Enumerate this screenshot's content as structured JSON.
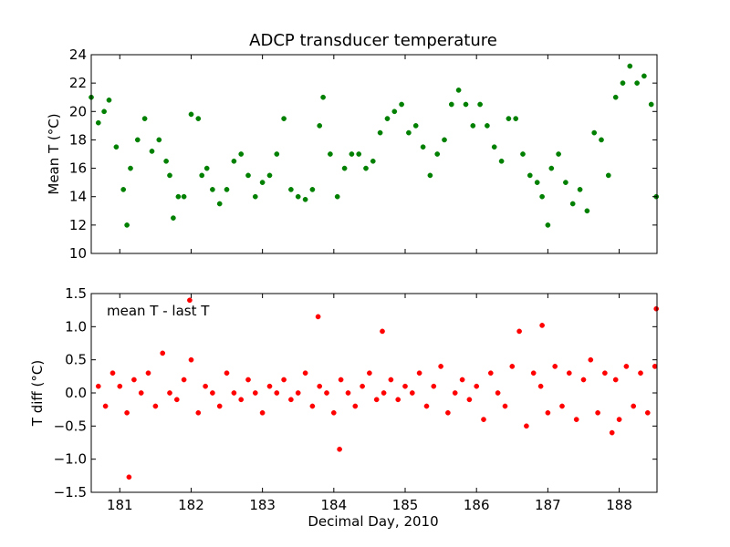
{
  "chart_data": [
    {
      "type": "scatter",
      "title": "ADCP transducer temperature",
      "xlabel": "",
      "ylabel": "Mean T (°C)",
      "xlim": [
        180.6,
        188.53
      ],
      "ylim": [
        10,
        24
      ],
      "xticks": [
        181,
        182,
        183,
        184,
        185,
        186,
        187,
        188
      ],
      "xtick_labels_visible": false,
      "yticks": [
        10,
        12,
        14,
        16,
        18,
        20,
        22,
        24
      ],
      "grid": false,
      "color": "#008000",
      "series": [
        {
          "x": [
            180.6,
            180.7,
            180.78,
            180.85,
            180.95,
            181.05,
            181.1,
            181.15,
            181.25,
            181.35,
            181.45,
            181.55,
            181.65,
            181.7,
            181.75,
            181.82,
            181.9,
            182.0,
            182.1,
            182.15,
            182.22,
            182.3,
            182.4,
            182.5,
            182.6,
            182.7,
            182.8,
            182.9,
            183.0,
            183.1,
            183.2,
            183.3,
            183.4,
            183.5,
            183.6,
            183.7,
            183.8,
            183.85,
            183.95,
            184.05,
            184.15,
            184.25,
            184.35,
            184.45,
            184.55,
            184.65,
            184.75,
            184.85,
            184.95,
            185.05,
            185.15,
            185.25,
            185.35,
            185.45,
            185.55,
            185.65,
            185.75,
            185.85,
            185.95,
            186.05,
            186.15,
            186.25,
            186.35,
            186.45,
            186.55,
            186.65,
            186.75,
            186.85,
            186.92,
            187.0,
            187.05,
            187.15,
            187.25,
            187.35,
            187.45,
            187.55,
            187.65,
            187.75,
            187.85,
            187.95,
            188.05,
            188.15,
            188.25,
            188.35,
            188.45,
            188.52
          ],
          "y": [
            21.0,
            19.2,
            20.0,
            20.8,
            17.5,
            14.5,
            12.0,
            16.0,
            18.0,
            19.5,
            17.2,
            18.0,
            16.5,
            15.5,
            12.5,
            14.0,
            14.0,
            19.8,
            19.5,
            15.5,
            16.0,
            14.5,
            13.5,
            14.5,
            16.5,
            17.0,
            15.5,
            14.0,
            15.0,
            15.5,
            17.0,
            19.5,
            14.5,
            14.0,
            13.8,
            14.5,
            19.0,
            21.0,
            17.0,
            14.0,
            16.0,
            17.0,
            17.0,
            16.0,
            16.5,
            18.5,
            19.5,
            20.0,
            20.5,
            18.5,
            19.0,
            17.5,
            15.5,
            17.0,
            18.0,
            20.5,
            21.5,
            20.5,
            19.0,
            20.5,
            19.0,
            17.5,
            16.5,
            19.5,
            19.5,
            17.0,
            15.5,
            15.0,
            14.0,
            12.0,
            16.0,
            17.0,
            15.0,
            13.5,
            14.5,
            13.0,
            18.5,
            18.0,
            15.5,
            21.0,
            22.0,
            23.2,
            22.0,
            22.5,
            20.5,
            14.0
          ]
        }
      ]
    },
    {
      "type": "scatter",
      "title": "",
      "xlabel": "Decimal Day, 2010",
      "ylabel": "T diff (°C)",
      "xlim": [
        180.6,
        188.53
      ],
      "ylim": [
        -1.5,
        1.5
      ],
      "xticks": [
        181,
        182,
        183,
        184,
        185,
        186,
        187,
        188
      ],
      "yticks": [
        -1.5,
        -1.0,
        -0.5,
        0.0,
        0.5,
        1.0,
        1.5
      ],
      "annotation": "mean T - last T",
      "grid": false,
      "color": "#ff0000",
      "series": [
        {
          "x": [
            180.7,
            180.8,
            180.9,
            181.0,
            181.1,
            181.13,
            181.2,
            181.3,
            181.4,
            181.5,
            181.6,
            181.7,
            181.8,
            181.9,
            181.98,
            182.0,
            182.1,
            182.2,
            182.3,
            182.4,
            182.5,
            182.6,
            182.7,
            182.8,
            182.9,
            183.0,
            183.1,
            183.2,
            183.3,
            183.4,
            183.5,
            183.6,
            183.7,
            183.78,
            183.8,
            183.9,
            184.0,
            184.08,
            184.1,
            184.2,
            184.3,
            184.4,
            184.5,
            184.6,
            184.68,
            184.7,
            184.8,
            184.9,
            185.0,
            185.1,
            185.2,
            185.3,
            185.4,
            185.5,
            185.6,
            185.7,
            185.8,
            185.9,
            186.0,
            186.1,
            186.2,
            186.3,
            186.4,
            186.5,
            186.6,
            186.7,
            186.8,
            186.9,
            186.92,
            187.0,
            187.1,
            187.2,
            187.3,
            187.4,
            187.5,
            187.6,
            187.7,
            187.8,
            187.9,
            187.95,
            188.0,
            188.1,
            188.2,
            188.3,
            188.4,
            188.5,
            188.52
          ],
          "y": [
            0.1,
            -0.2,
            0.3,
            0.1,
            -0.3,
            -1.27,
            0.2,
            0.0,
            0.3,
            -0.2,
            0.6,
            0.0,
            -0.1,
            0.2,
            1.4,
            0.5,
            -0.3,
            0.1,
            0.0,
            -0.2,
            0.3,
            0.0,
            -0.1,
            0.2,
            0.0,
            -0.3,
            0.1,
            0.0,
            0.2,
            -0.1,
            0.0,
            0.3,
            -0.2,
            1.15,
            0.1,
            0.0,
            -0.3,
            -0.85,
            0.2,
            0.0,
            -0.2,
            0.1,
            0.3,
            -0.1,
            0.93,
            0.0,
            0.2,
            -0.1,
            0.1,
            0.0,
            0.3,
            -0.2,
            0.1,
            0.4,
            -0.3,
            0.0,
            0.2,
            -0.1,
            0.1,
            -0.4,
            0.3,
            0.0,
            -0.2,
            0.4,
            0.93,
            -0.5,
            0.3,
            0.1,
            1.02,
            -0.3,
            0.4,
            -0.2,
            0.3,
            -0.4,
            0.2,
            0.5,
            -0.3,
            0.3,
            -0.6,
            0.2,
            -0.4,
            0.4,
            -0.2,
            0.3,
            -0.3,
            0.4,
            1.27
          ]
        }
      ]
    }
  ]
}
